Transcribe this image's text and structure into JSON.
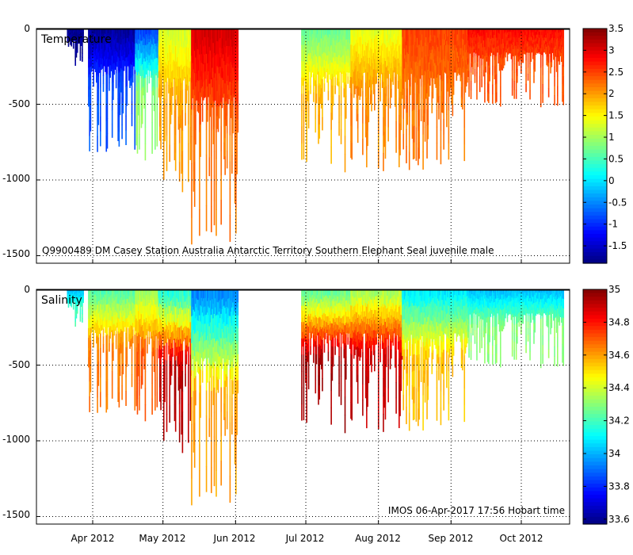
{
  "chart_data": [
    {
      "type": "heatmap",
      "title": "Temperature",
      "annotation": "Q9900489 DM Casey Station Australia Antarctic Territory Southern Elephant Seal juvenile male",
      "x_ticks": [
        "Apr 2012",
        "May 2012",
        "Jun 2012",
        "Jul 2012",
        "Aug 2012",
        "Sep 2012",
        "Oct 2012"
      ],
      "y_ticks": [
        0,
        -500,
        -1000,
        -1500
      ],
      "ylim": [
        -1550,
        0
      ],
      "colorbar": {
        "min": -1.9,
        "max": 3.5,
        "ticks": [
          3.5,
          3,
          2.5,
          2,
          1.5,
          1,
          0.5,
          0,
          -0.5,
          -1,
          -1.5
        ]
      },
      "segments": [
        {
          "start_day": -11,
          "end_day": -4,
          "max_depth": 260,
          "surface_value": -1.8,
          "deep_value": -1.8
        },
        {
          "start_day": -2,
          "end_day": 18,
          "max_depth": 820,
          "surface_value": -1.8,
          "deep_value": -0.8
        },
        {
          "start_day": 18,
          "end_day": 28,
          "max_depth": 900,
          "surface_value": -1.0,
          "deep_value": 0.9
        },
        {
          "start_day": 28,
          "end_day": 42,
          "max_depth": 1080,
          "surface_value": 1.2,
          "deep_value": 2.0
        },
        {
          "start_day": 42,
          "end_day": 62,
          "max_depth": 1500,
          "surface_value": 3.1,
          "deep_value": 2.2
        },
        {
          "start_day": 89,
          "end_day": 110,
          "max_depth": 950,
          "surface_value": 0.6,
          "deep_value": 1.9
        },
        {
          "start_day": 110,
          "end_day": 132,
          "max_depth": 950,
          "surface_value": 1.3,
          "deep_value": 2.1
        },
        {
          "start_day": 132,
          "end_day": 160,
          "max_depth": 960,
          "surface_value": 2.5,
          "deep_value": 2.2
        },
        {
          "start_day": 160,
          "end_day": 201,
          "max_depth": 520,
          "surface_value": 2.8,
          "deep_value": 2.4
        }
      ]
    },
    {
      "type": "heatmap",
      "title": "Salinity",
      "annotation": "IMOS 06-Apr-2017 17:56 Hobart time",
      "x_ticks": [
        "Apr 2012",
        "May 2012",
        "Jun 2012",
        "Jul 2012",
        "Aug 2012",
        "Sep 2012",
        "Oct 2012"
      ],
      "y_ticks": [
        0,
        -500,
        -1000,
        -1500
      ],
      "ylim": [
        -1550,
        0
      ],
      "colorbar": {
        "min": 33.57,
        "max": 35.0,
        "ticks": [
          35,
          34.8,
          34.6,
          34.4,
          34.2,
          34,
          33.8,
          33.6
        ]
      },
      "segments": [
        {
          "start_day": -11,
          "end_day": -4,
          "max_depth": 260,
          "surface_value": 34.0,
          "deep_value": 34.2
        },
        {
          "start_day": -2,
          "end_day": 18,
          "max_depth": 820,
          "surface_value": 34.2,
          "deep_value": 34.65
        },
        {
          "start_day": 18,
          "end_day": 28,
          "max_depth": 900,
          "surface_value": 34.3,
          "deep_value": 34.7
        },
        {
          "start_day": 28,
          "end_day": 42,
          "max_depth": 1080,
          "surface_value": 34.1,
          "deep_value": 34.92
        },
        {
          "start_day": 42,
          "end_day": 62,
          "max_depth": 1500,
          "surface_value": 33.9,
          "deep_value": 34.6
        },
        {
          "start_day": 89,
          "end_day": 110,
          "max_depth": 950,
          "surface_value": 34.2,
          "deep_value": 34.95
        },
        {
          "start_day": 110,
          "end_day": 132,
          "max_depth": 950,
          "surface_value": 34.3,
          "deep_value": 34.9
        },
        {
          "start_day": 132,
          "end_day": 160,
          "max_depth": 960,
          "surface_value": 34.05,
          "deep_value": 34.55
        },
        {
          "start_day": 160,
          "end_day": 201,
          "max_depth": 520,
          "surface_value": 34.0,
          "deep_value": 34.3
        }
      ]
    }
  ]
}
